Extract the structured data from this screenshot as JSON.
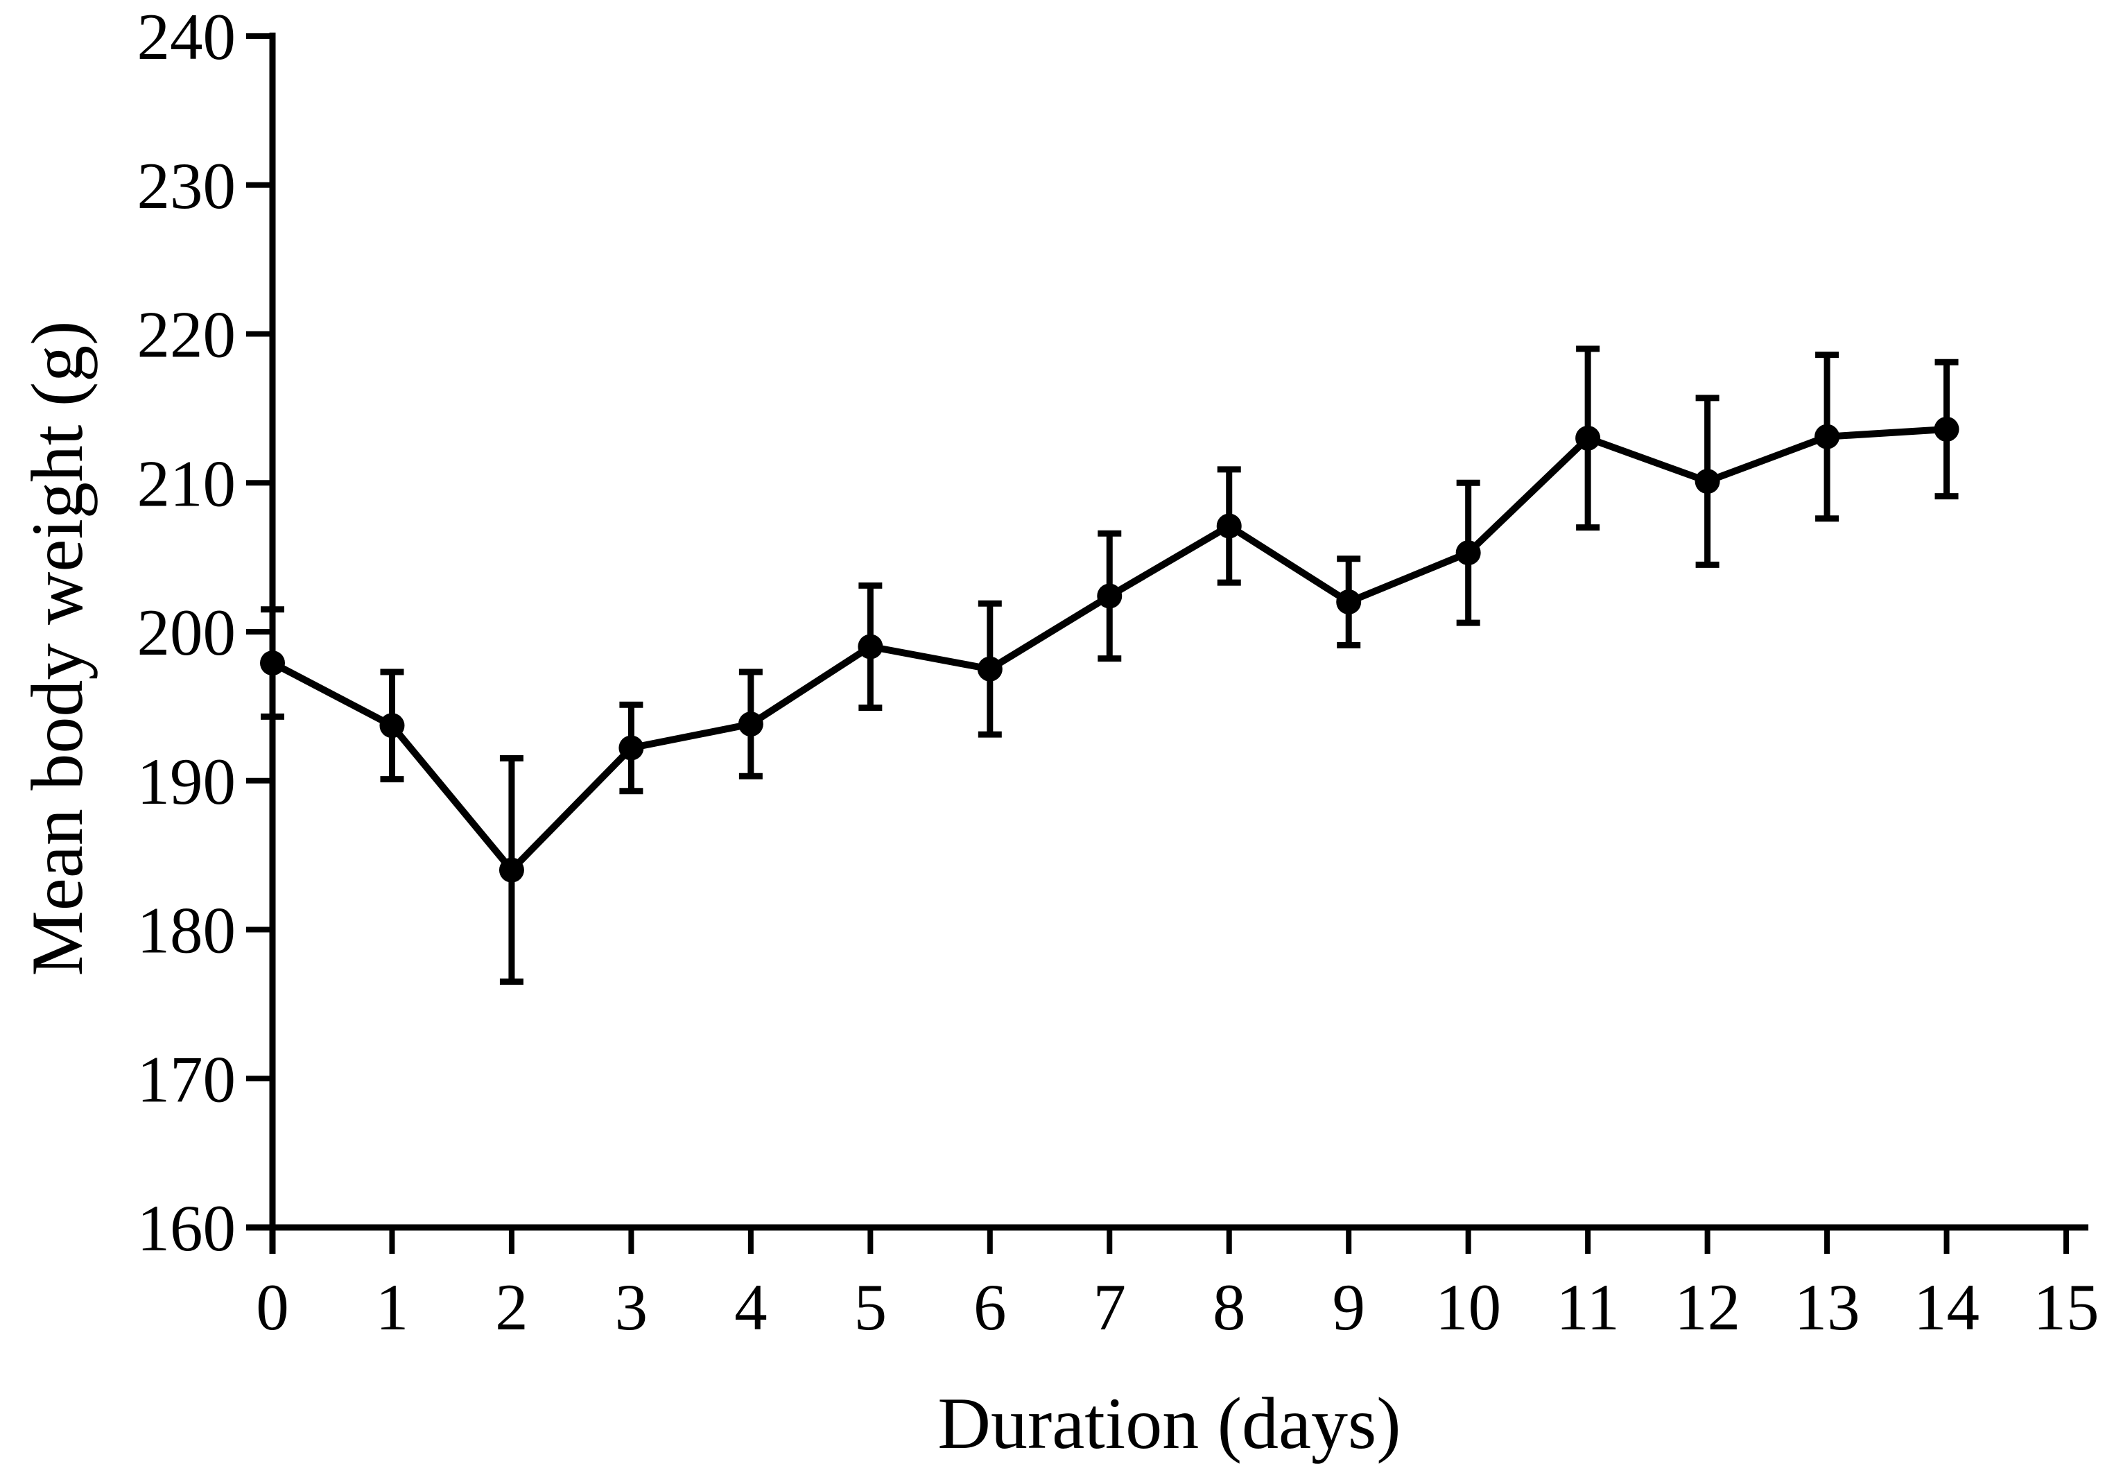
{
  "figure": {
    "background": "#ffffff",
    "ink_color": "#000000"
  },
  "chart_data": {
    "type": "line",
    "title": "",
    "xlabel": "Duration (days)",
    "ylabel": "Mean body weight (g)",
    "x": [
      0,
      1,
      2,
      3,
      4,
      5,
      6,
      7,
      8,
      9,
      10,
      11,
      12,
      13,
      14
    ],
    "series": [
      {
        "name": "Mean body weight",
        "values": [
          197.9,
          193.7,
          184.0,
          192.2,
          193.8,
          199.0,
          197.5,
          202.4,
          207.1,
          202.0,
          205.3,
          213.0,
          210.1,
          213.1,
          213.6
        ],
        "errors": [
          3.6,
          3.6,
          7.5,
          2.9,
          3.5,
          4.1,
          4.4,
          4.2,
          3.8,
          2.9,
          4.7,
          6.0,
          5.6,
          5.5,
          4.5
        ],
        "marker": "filled-circle",
        "error_caps": true,
        "color": "#000000"
      }
    ],
    "xlim": [
      0,
      15
    ],
    "ylim": [
      160,
      240
    ],
    "x_ticks": [
      0,
      1,
      2,
      3,
      4,
      5,
      6,
      7,
      8,
      9,
      10,
      11,
      12,
      13,
      14,
      15
    ],
    "y_ticks": [
      160,
      170,
      180,
      190,
      200,
      210,
      220,
      230,
      240
    ],
    "grid": false,
    "legend": null
  }
}
